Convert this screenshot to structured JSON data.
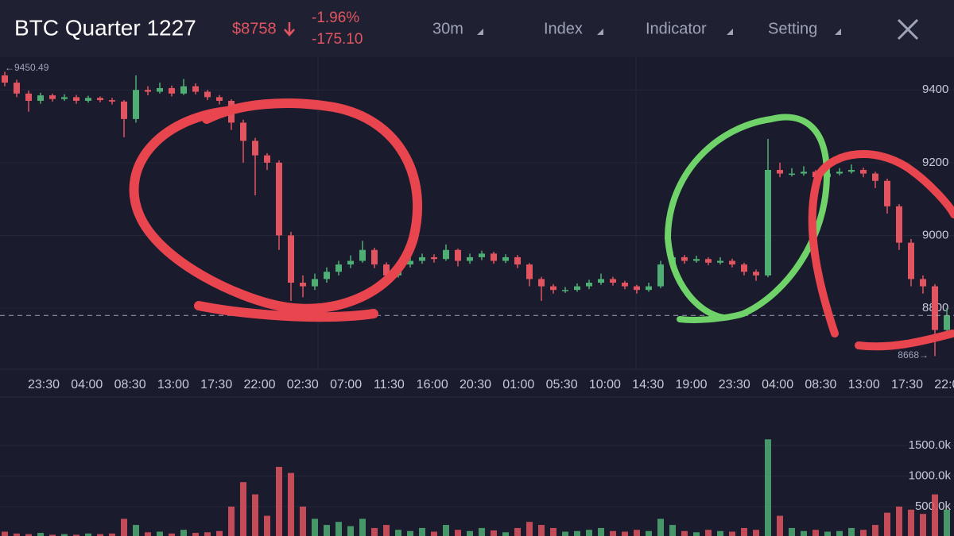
{
  "header": {
    "title": "BTC Quarter 1227",
    "price": "$8758",
    "change_pct": "-1.96%",
    "change": "-175.10",
    "menu": [
      "30m",
      "Index",
      "Indicator",
      "Setting"
    ]
  },
  "chart_data": {
    "type": "candlestick",
    "candles": [
      [
        9440,
        9450,
        9410,
        9420
      ],
      [
        9420,
        9428,
        9380,
        9390
      ],
      [
        9390,
        9398,
        9340,
        9370
      ],
      [
        9370,
        9392,
        9362,
        9385
      ],
      [
        9385,
        9390,
        9368,
        9375
      ],
      [
        9375,
        9388,
        9370,
        9380
      ],
      [
        9380,
        9386,
        9362,
        9370
      ],
      [
        9370,
        9384,
        9365,
        9378
      ],
      [
        9378,
        9382,
        9366,
        9372
      ],
      [
        9372,
        9378,
        9360,
        9368
      ],
      [
        9368,
        9372,
        9270,
        9320
      ],
      [
        9320,
        9440,
        9310,
        9400
      ],
      [
        9400,
        9410,
        9385,
        9395
      ],
      [
        9395,
        9420,
        9390,
        9405
      ],
      [
        9405,
        9412,
        9382,
        9390
      ],
      [
        9390,
        9430,
        9386,
        9410
      ],
      [
        9410,
        9418,
        9388,
        9395
      ],
      [
        9395,
        9400,
        9372,
        9380
      ],
      [
        9380,
        9386,
        9360,
        9370
      ],
      [
        9370,
        9374,
        9290,
        9310
      ],
      [
        9310,
        9318,
        9200,
        9260
      ],
      [
        9260,
        9268,
        9110,
        9220
      ],
      [
        9220,
        9226,
        9180,
        9200
      ],
      [
        9200,
        9206,
        8960,
        9000
      ],
      [
        9000,
        9010,
        8820,
        8870
      ],
      [
        8870,
        8890,
        8830,
        8860
      ],
      [
        8860,
        8895,
        8850,
        8880
      ],
      [
        8880,
        8912,
        8870,
        8900
      ],
      [
        8900,
        8930,
        8890,
        8920
      ],
      [
        8920,
        8945,
        8910,
        8930
      ],
      [
        8930,
        8985,
        8925,
        8960
      ],
      [
        8960,
        8966,
        8910,
        8920
      ],
      [
        8920,
        8926,
        8870,
        8890
      ],
      [
        8890,
        8930,
        8884,
        8920
      ],
      [
        8920,
        8940,
        8912,
        8930
      ],
      [
        8930,
        8950,
        8922,
        8940
      ],
      [
        8940,
        8948,
        8925,
        8935
      ],
      [
        8935,
        8975,
        8930,
        8960
      ],
      [
        8960,
        8964,
        8915,
        8930
      ],
      [
        8930,
        8950,
        8922,
        8940
      ],
      [
        8940,
        8958,
        8932,
        8950
      ],
      [
        8950,
        8955,
        8922,
        8930
      ],
      [
        8930,
        8948,
        8924,
        8940
      ],
      [
        8940,
        8946,
        8910,
        8920
      ],
      [
        8920,
        8924,
        8860,
        8880
      ],
      [
        8880,
        8886,
        8820,
        8860
      ],
      [
        8860,
        8866,
        8840,
        8850
      ],
      [
        8850,
        8858,
        8842,
        8850
      ],
      [
        8850,
        8868,
        8845,
        8860
      ],
      [
        8860,
        8878,
        8852,
        8870
      ],
      [
        8870,
        8895,
        8864,
        8880
      ],
      [
        8880,
        8886,
        8862,
        8870
      ],
      [
        8870,
        8875,
        8852,
        8860
      ],
      [
        8860,
        8864,
        8840,
        8850
      ],
      [
        8850,
        8870,
        8845,
        8860
      ],
      [
        8860,
        8930,
        8855,
        8920
      ],
      [
        8920,
        8955,
        8915,
        8940
      ],
      [
        8940,
        8946,
        8922,
        8930
      ],
      [
        8930,
        8944,
        8925,
        8935
      ],
      [
        8935,
        8940,
        8918,
        8925
      ],
      [
        8925,
        8940,
        8920,
        8930
      ],
      [
        8930,
        8936,
        8912,
        8920
      ],
      [
        8920,
        8925,
        8890,
        8900
      ],
      [
        8900,
        8906,
        8875,
        8890
      ],
      [
        8890,
        9265,
        8885,
        9180
      ],
      [
        9180,
        9200,
        9160,
        9170
      ],
      [
        9170,
        9185,
        9162,
        9170
      ],
      [
        9170,
        9190,
        9164,
        9175
      ],
      [
        9175,
        9180,
        9150,
        9160
      ],
      [
        9160,
        9178,
        9155,
        9170
      ],
      [
        9170,
        9185,
        9165,
        9175
      ],
      [
        9175,
        9195,
        9170,
        9180
      ],
      [
        9180,
        9186,
        9160,
        9170
      ],
      [
        9170,
        9175,
        9130,
        9150
      ],
      [
        9150,
        9156,
        9060,
        9080
      ],
      [
        9080,
        9086,
        8960,
        8980
      ],
      [
        8980,
        8990,
        8860,
        8880
      ],
      [
        8880,
        8890,
        8840,
        8860
      ],
      [
        8860,
        8866,
        8668,
        8740
      ],
      [
        8740,
        8800,
        8720,
        8780
      ]
    ],
    "volumes": [
      90,
      60,
      50,
      70,
      40,
      50,
      40,
      60,
      50,
      60,
      300,
      200,
      80,
      90,
      60,
      120,
      70,
      80,
      100,
      500,
      900,
      700,
      350,
      1150,
      1050,
      500,
      300,
      200,
      250,
      180,
      300,
      150,
      200,
      120,
      100,
      150,
      90,
      200,
      120,
      100,
      150,
      110,
      80,
      150,
      250,
      200,
      150,
      90,
      100,
      120,
      150,
      100,
      90,
      120,
      100,
      300,
      200,
      100,
      80,
      120,
      100,
      90,
      150,
      120,
      1600,
      350,
      150,
      100,
      120,
      90,
      100,
      150,
      120,
      200,
      400,
      500,
      450,
      380,
      700,
      450
    ],
    "ylim": [
      8632,
      9490
    ],
    "yticks": [
      9400,
      9200,
      9000,
      8800
    ],
    "volume_ylim": [
      19,
      2292
    ],
    "volume_ticks": [
      {
        "value": 1500,
        "label": "1500.0k"
      },
      {
        "value": 1000,
        "label": "1000.0k"
      },
      {
        "value": 500,
        "label": "500.0k"
      }
    ],
    "time_labels": [
      "23:30",
      "04:00",
      "08:30",
      "13:00",
      "17:30",
      "22:00",
      "02:30",
      "07:00",
      "11:30",
      "16:00",
      "20:30",
      "01:00",
      "05:30",
      "10:00",
      "14:30",
      "19:00",
      "23:30",
      "04:00",
      "08:30",
      "13:00",
      "17:30",
      "22:00"
    ],
    "max_label": "←9450.49",
    "min_label": "8668→",
    "up_color": "#4fae74",
    "down_color": "#e25560",
    "grid": true
  }
}
